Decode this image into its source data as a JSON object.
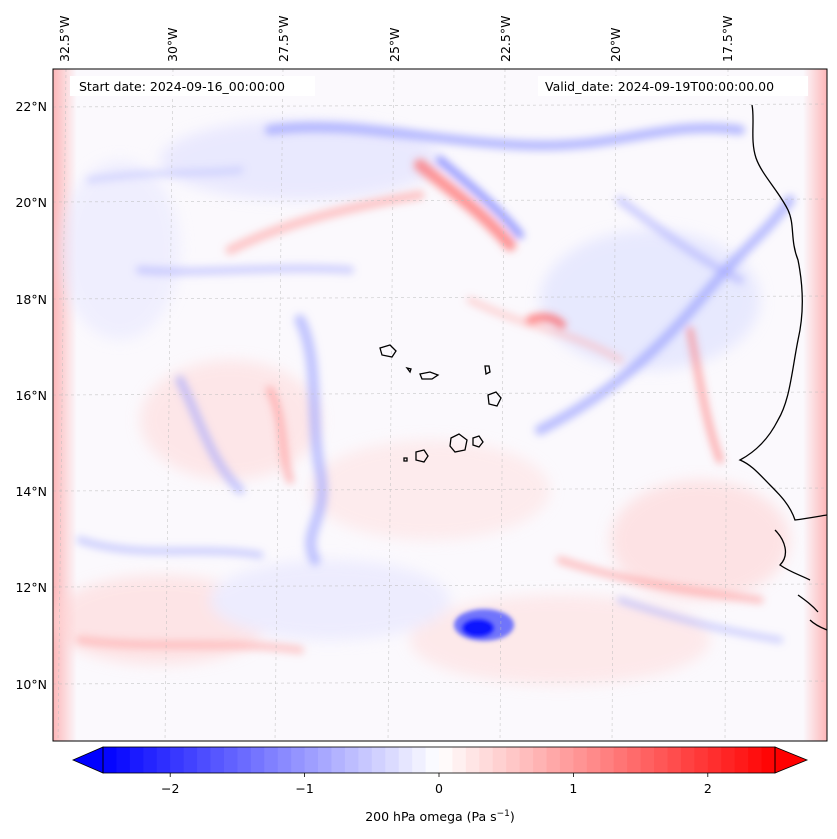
{
  "header": {
    "start_date": "Start date: 2024-09-16_00:00:00",
    "valid_date": "Valid_date: 2024-09-19T00:00:00.00"
  },
  "gridlines": {
    "lon_labels": [
      "32.5°W",
      "30°W",
      "27.5°W",
      "25°W",
      "22.5°W",
      "20°W",
      "17.5°W"
    ],
    "lat_labels": [
      "22°N",
      "20°N",
      "18°N",
      "16°N",
      "14°N",
      "12°N",
      "10°N"
    ]
  },
  "colorbar": {
    "label": "200 hPa omega (Pa s",
    "label_sup": "−1",
    "label_close": ")",
    "tick_labels": [
      "−2",
      "−1",
      "0",
      "1",
      "2"
    ],
    "ticks": [
      -2,
      -1,
      0,
      1,
      2
    ],
    "range": [
      -2.5,
      2.5
    ],
    "extend": "both",
    "colormap": "bwr",
    "color_low": "#0000ff",
    "color_mid": "#ffffff",
    "color_high": "#ff0000"
  },
  "map": {
    "coastline_color": "#000000",
    "gridline_color": "#bbbbbb"
  }
}
